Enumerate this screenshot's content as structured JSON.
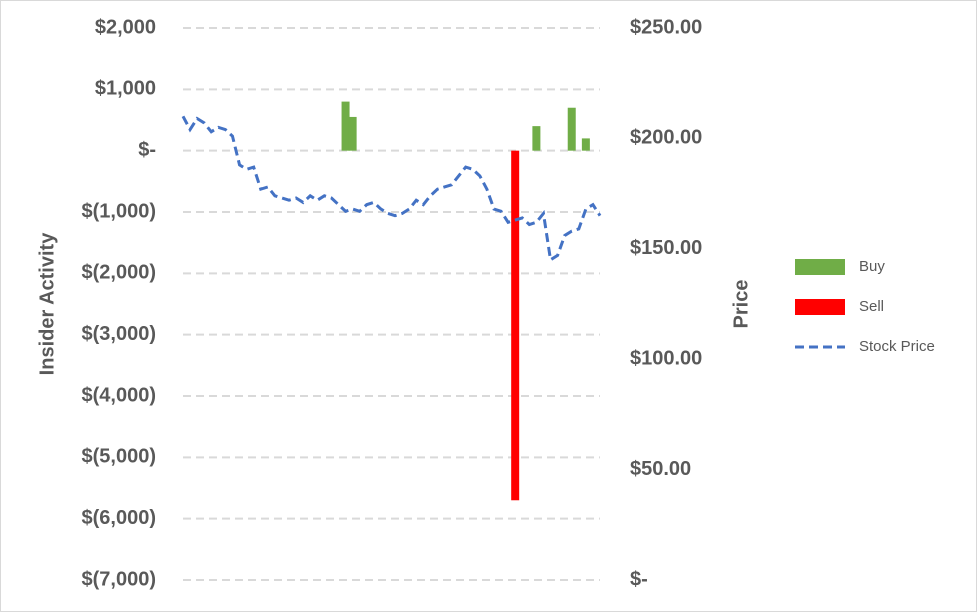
{
  "chart_data": {
    "type": "bar-line",
    "categories": [
      null,
      null,
      null,
      null,
      null,
      null,
      null,
      null,
      null,
      null,
      null,
      null,
      null,
      null,
      null,
      null,
      null,
      null,
      null,
      null,
      null,
      null,
      null,
      null,
      null,
      null,
      null,
      null,
      null,
      null,
      null,
      null,
      null,
      null,
      null,
      null,
      null,
      null,
      null,
      null,
      null,
      null,
      null,
      null,
      null,
      null,
      null,
      null,
      null,
      null,
      null,
      null,
      null,
      null,
      null,
      null,
      null,
      null,
      null,
      null
    ],
    "series": [
      {
        "name": "Buy",
        "color": "#70ad47",
        "type": "bar",
        "values": [
          null,
          null,
          null,
          null,
          null,
          null,
          null,
          null,
          null,
          null,
          null,
          null,
          null,
          null,
          null,
          null,
          null,
          null,
          null,
          null,
          null,
          null,
          null,
          800,
          550,
          null,
          null,
          null,
          null,
          null,
          null,
          null,
          null,
          null,
          null,
          null,
          null,
          null,
          null,
          null,
          null,
          null,
          null,
          null,
          null,
          null,
          null,
          null,
          null,
          null,
          400,
          null,
          null,
          null,
          null,
          700,
          null,
          200,
          null,
          null
        ]
      },
      {
        "name": "Sell",
        "color": "#ff0000",
        "type": "bar",
        "values": [
          null,
          null,
          null,
          null,
          null,
          null,
          null,
          null,
          null,
          null,
          null,
          null,
          null,
          null,
          null,
          null,
          null,
          null,
          null,
          null,
          null,
          null,
          null,
          null,
          null,
          null,
          null,
          null,
          null,
          null,
          null,
          null,
          null,
          null,
          null,
          null,
          null,
          null,
          null,
          null,
          null,
          null,
          null,
          null,
          null,
          null,
          null,
          -5700,
          null,
          null,
          null,
          null,
          null,
          null,
          null,
          null,
          null,
          null,
          null,
          null
        ]
      },
      {
        "name": "Stock Price",
        "color": "#4472c4",
        "type": "line",
        "axis": "y2",
        "values": [
          210,
          204,
          209,
          207,
          203,
          205,
          204,
          201,
          188,
          186,
          187,
          177,
          178,
          174,
          173,
          172,
          173,
          171,
          174,
          172,
          174,
          173,
          170,
          167,
          168,
          167,
          170,
          171,
          168,
          166,
          165,
          166,
          168,
          172,
          170,
          174,
          177,
          178,
          179,
          183,
          187,
          186,
          183,
          177,
          168,
          167,
          162,
          163,
          164,
          161,
          162,
          166,
          145,
          147,
          156,
          158,
          159,
          168,
          170,
          165
        ]
      }
    ],
    "ylabel": "Insider Activity",
    "y2label": "Price",
    "ylim": [
      -7000,
      2000
    ],
    "yticks": [
      {
        "value": -7000,
        "label": "$(7,000)"
      },
      {
        "value": -6000,
        "label": "$(6,000)"
      },
      {
        "value": -5000,
        "label": "$(5,000)"
      },
      {
        "value": -4000,
        "label": "$(4,000)"
      },
      {
        "value": -3000,
        "label": "$(3,000)"
      },
      {
        "value": -2000,
        "label": "$(2,000)"
      },
      {
        "value": -1000,
        "label": "$(1,000)"
      },
      {
        "value": 0,
        "label": "$-"
      },
      {
        "value": 1000,
        "label": "$1,000"
      },
      {
        "value": 2000,
        "label": "$2,000"
      }
    ],
    "y2lim": [
      0,
      250
    ],
    "y2ticks": [
      {
        "value": 0,
        "label": "$-"
      },
      {
        "value": 50,
        "label": "$50.00"
      },
      {
        "value": 100,
        "label": "$100.00"
      },
      {
        "value": 150,
        "label": "$150.00"
      },
      {
        "value": 200,
        "label": "$200.00"
      },
      {
        "value": 250,
        "label": "$250.00"
      }
    ],
    "grid": true,
    "legend": "right"
  }
}
